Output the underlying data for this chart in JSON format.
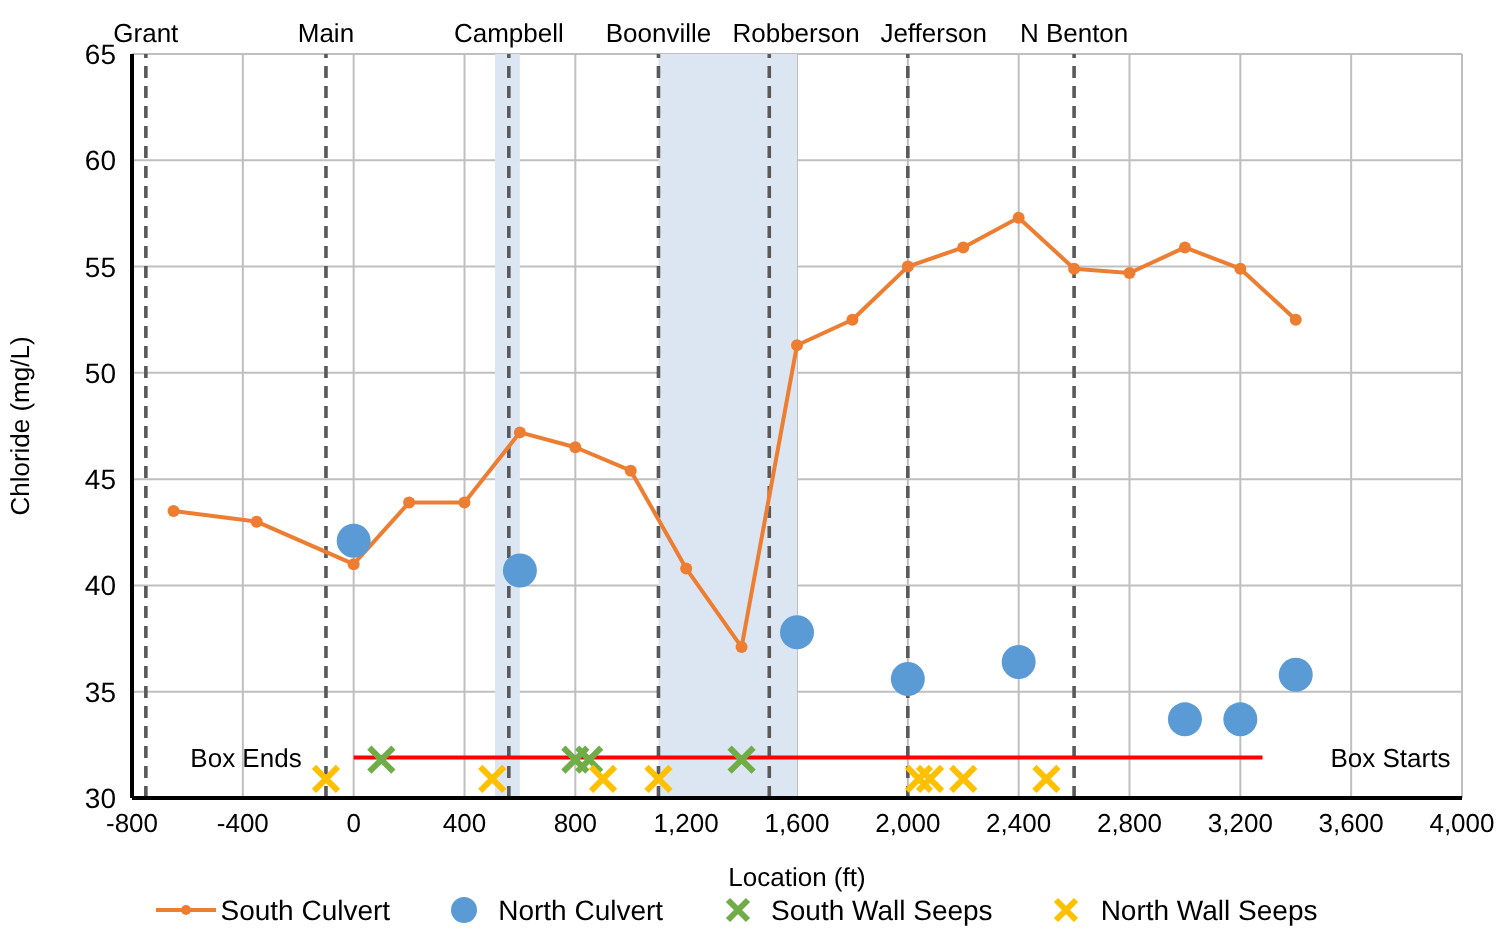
{
  "chart_data": {
    "type": "scatter",
    "xlabel": "Location (ft)",
    "ylabel": "Chloride (mg/L)",
    "xlim": [
      -800,
      4000
    ],
    "ylim": [
      30,
      65
    ],
    "xticks": [
      -800,
      -400,
      0,
      400,
      800,
      {
        "value": 1200,
        "label": "1,200"
      },
      {
        "value": 1600,
        "label": "1,600"
      },
      {
        "value": 2000,
        "label": "2,000"
      },
      {
        "value": 2400,
        "label": "2,400"
      },
      {
        "value": 2800,
        "label": "2,800"
      },
      {
        "value": 3200,
        "label": "3,200"
      },
      {
        "value": 3600,
        "label": "3,600"
      },
      {
        "value": 4000,
        "label": "4,000"
      }
    ],
    "yticks": [
      30,
      35,
      40,
      45,
      50,
      55,
      60,
      65
    ],
    "grid": true,
    "legend": "bottom",
    "series": [
      {
        "name": "South Culvert",
        "type": "line",
        "color": "#ed7d31",
        "marker": "circle",
        "x": [
          -650,
          -350,
          0,
          200,
          400,
          600,
          800,
          1000,
          1200,
          1400,
          1600,
          1800,
          2000,
          2200,
          2400,
          2600,
          2800,
          3000,
          3200,
          3400
        ],
        "values": [
          43.5,
          43,
          41,
          43.9,
          43.9,
          47.2,
          46.5,
          45.4,
          40.8,
          37.1,
          51.3,
          52.5,
          55,
          55.9,
          57.3,
          54.9,
          54.7,
          55.9,
          54.9,
          52.5
        ]
      },
      {
        "name": "North Culvert",
        "color": "#5b9bd5",
        "marker": "circle",
        "x": [
          0,
          600,
          1600,
          2000,
          2400,
          3000,
          3200,
          3400
        ],
        "values": [
          42.1,
          40.7,
          37.8,
          35.6,
          36.4,
          33.7,
          33.7,
          35.8
        ]
      },
      {
        "name": "South Wall Seeps",
        "color": "#70ad47",
        "marker": "cross",
        "x": [
          100,
          800,
          850,
          1400
        ],
        "values": [
          31.8,
          31.8,
          31.8,
          31.8
        ]
      },
      {
        "name": "North Wall Seeps",
        "color": "#ffc000",
        "marker": "cross",
        "x": [
          -100,
          500,
          900,
          1100,
          2040,
          2080,
          2200,
          2500
        ],
        "values": [
          30.9,
          30.9,
          30.9,
          30.9,
          30.9,
          30.9,
          30.9,
          30.9
        ]
      },
      {
        "type": "line",
        "color": "#ff0000",
        "marker": "none",
        "x": [
          0,
          3280
        ],
        "values": [
          31.9,
          31.9
        ]
      }
    ],
    "ref_lines": [
      {
        "axis": "x",
        "value": -750,
        "label": "Grant",
        "color": "#595959",
        "line_style": "dashed"
      },
      {
        "axis": "x",
        "value": -100,
        "label": "Main",
        "color": "#595959",
        "line_style": "dashed"
      },
      {
        "axis": "x",
        "value": 560,
        "label": "Campbell",
        "color": "#595959",
        "line_style": "dashed"
      },
      {
        "axis": "x",
        "value": 1100,
        "label": "Boonville",
        "color": "#595959",
        "line_style": "dashed"
      },
      {
        "axis": "x",
        "value": 1500,
        "label": "Robberson",
        "color": "#595959",
        "line_style": "dashed"
      },
      {
        "axis": "x",
        "value": 2000,
        "label": "Jefferson",
        "color": "#595959",
        "line_style": "dashed"
      },
      {
        "axis": "x",
        "value": 2600,
        "label": "N Benton",
        "color": "#595959",
        "line_style": "dashed"
      }
    ],
    "bands": [
      {
        "axis": "x",
        "from": 510,
        "to": 600,
        "color": "#dce6f2"
      },
      {
        "axis": "x",
        "from": 1100,
        "to": 1600,
        "color": "#dce6f2"
      }
    ],
    "annotations": [
      "Box Ends",
      "Box Starts"
    ]
  }
}
